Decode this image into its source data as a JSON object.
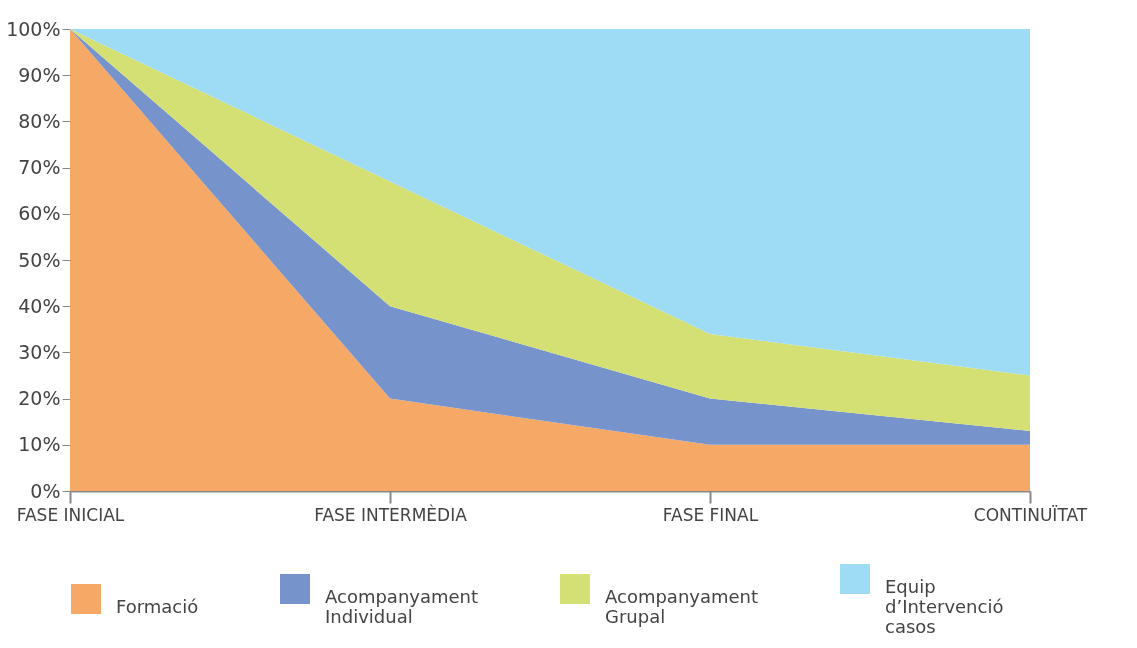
{
  "chart_data": {
    "type": "area",
    "stacked": true,
    "categories": [
      "FASE INICIAL",
      "FASE INTERMÈDIA",
      "FASE FINAL",
      "CONTINUÏTAT"
    ],
    "series": [
      {
        "name": "Formació",
        "color": "#f6a866",
        "values": [
          100,
          20,
          10,
          10
        ]
      },
      {
        "name": "Acompanyament Individual",
        "color": "#7694cb",
        "values": [
          0,
          20,
          10,
          3
        ]
      },
      {
        "name": "Acompanyament Grupal",
        "color": "#d4e073",
        "values": [
          0,
          27,
          14,
          12
        ]
      },
      {
        "name": "Equip d’Intervenció casos",
        "color": "#9ddcf4",
        "values": [
          0,
          33,
          66,
          75
        ]
      }
    ],
    "ylim": [
      0,
      100
    ],
    "yticks": [
      {
        "value": 0,
        "label": "0%"
      },
      {
        "value": 10,
        "label": "10%"
      },
      {
        "value": 20,
        "label": "20%"
      },
      {
        "value": 30,
        "label": "30%"
      },
      {
        "value": 40,
        "label": "40%"
      },
      {
        "value": 50,
        "label": "50%"
      },
      {
        "value": 60,
        "label": "60%"
      },
      {
        "value": 70,
        "label": "70%"
      },
      {
        "value": 80,
        "label": "80%"
      },
      {
        "value": 90,
        "label": "90%"
      },
      {
        "value": 100,
        "label": "100%"
      }
    ],
    "grid": false,
    "legend": "bottom"
  }
}
